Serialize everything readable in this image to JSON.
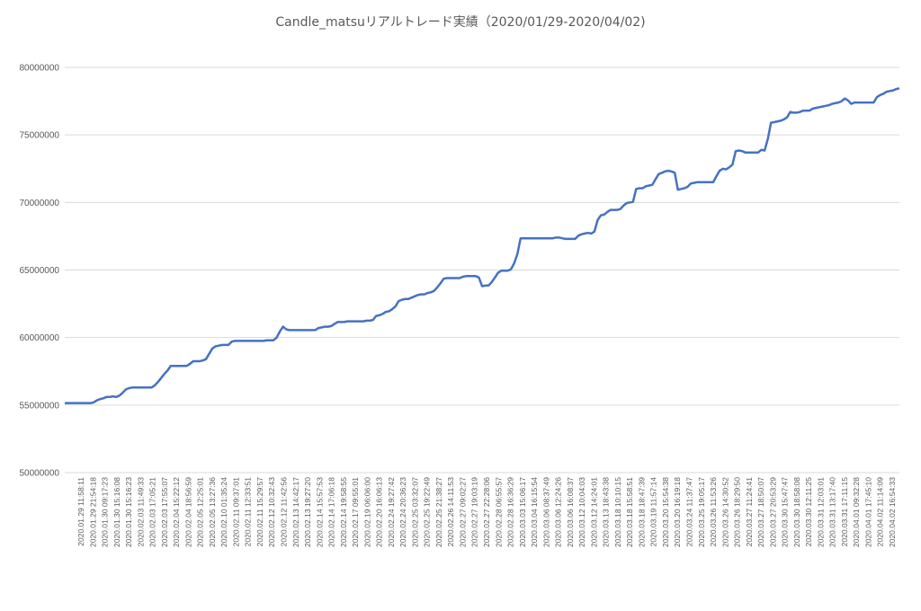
{
  "chart_data": {
    "type": "line",
    "title": "Candle_matsuリアルトレード実績（2020/01/29-2020/04/02)",
    "xlabel": "",
    "ylabel": "",
    "ylim": [
      50000000,
      80000000
    ],
    "y_ticks": [
      "80000000",
      "75000000",
      "70000000",
      "65000000",
      "60000000",
      "55000000",
      "50000000"
    ],
    "y_tick_values": [
      80000000,
      75000000,
      70000000,
      65000000,
      60000000,
      55000000,
      50000000
    ],
    "grid": "horizontal",
    "line_color": "#4472c4",
    "x_tick_labels": [
      "2020.01.29 11:58:11",
      "2020.01.29 21:54:18",
      "2020.01.30 09:17:23",
      "2020.01.30 15:16:08",
      "2020.01.30 15:16:23",
      "2020.02.03 11:49:33",
      "2020.02.03 17:05:21",
      "2020.02.03 17:55:07",
      "2020.02.04 15:22:12",
      "2020.02.04 18:56:59",
      "2020.02.05 12:25:01",
      "2020.02.05 13:27:36",
      "2020.02.10 01:35:24",
      "2020.02.11 09:37:01",
      "2020.02.11 12:33:51",
      "2020.02.11 15:29:57",
      "2020.02.12 10:32:43",
      "2020.02.12 11:42:56",
      "2020.02.13 14:42:17",
      "2020.02.13 19:27:20",
      "2020.02.14 15:57:53",
      "2020.02.14 17:06:18",
      "2020.02.14 19:58:55",
      "2020.02.17 09:55:01",
      "2020.02.19 06:06:00",
      "2020.02.20 16:06:13",
      "2020.02.24 19:27:42",
      "2020.02.24 20:36:23",
      "2020.02.25 03:32:07",
      "2020.02.25 19:22:49",
      "2020.02.25 21:38:27",
      "2020.02.26 14:11:53",
      "2020.02.27 09:02:27",
      "2020.02.27 19:03:19",
      "2020.02.27 22:28:06",
      "2020.02.28 06:55:57",
      "2020.02.28 16:36:29",
      "2020.03.03 15:06:17",
      "2020.03.04 16:15:54",
      "2020.03.06 08:37:49",
      "2020.03.06 12:24:26",
      "2020.03.06 16:08:37",
      "2020.03.12 10:04:03",
      "2020.03.12 14:24:01",
      "2020.03.13 18:43:38",
      "2020.03.18 10:10:15",
      "2020.03.18 15:58:51",
      "2020.03.18 18:47:39",
      "2020.03.19 11:57:14",
      "2020.03.20 15:54:38",
      "2020.03.20 16:19:18",
      "2020.03.24 11:37:47",
      "2020.03.25 19:05:17",
      "2020.03.26 11:53:26",
      "2020.03.26 14:30:52",
      "2020.03.26 18:29:50",
      "2020.03.27 11:24:41",
      "2020.03.27 18:50:07",
      "2020.03.27 20:53:29",
      "2020.03.30 15:47:47",
      "2020.03.30 18:58:08",
      "2020.03.30 12:11:25",
      "2020.03.31 12:03:01",
      "2020.03.31 13:17:40",
      "2020.03.31 17:11:15",
      "2020.04.01 09:32:28",
      "2020.04.01 17:45:10",
      "2020.04.02 11:14:09",
      "2020.04.02 16:54:33"
    ],
    "series": [
      {
        "name": "",
        "values": [
          [
            0,
            55150000
          ],
          [
            3,
            55150000
          ],
          [
            6,
            55150000
          ],
          [
            9,
            55150000
          ],
          [
            12,
            55150000
          ],
          [
            15,
            55150000
          ],
          [
            18,
            55150000
          ],
          [
            21,
            55150000
          ],
          [
            24,
            55150000
          ],
          [
            27,
            55200000
          ],
          [
            30,
            55350000
          ],
          [
            33,
            55450000
          ],
          [
            36,
            55500000
          ],
          [
            39,
            55600000
          ],
          [
            42,
            55600000
          ],
          [
            45,
            55650000
          ],
          [
            48,
            55600000
          ],
          [
            51,
            55700000
          ],
          [
            54,
            55900000
          ],
          [
            57,
            56150000
          ],
          [
            60,
            56250000
          ],
          [
            63,
            56300000
          ],
          [
            66,
            56300000
          ],
          [
            69,
            56300000
          ],
          [
            72,
            56300000
          ],
          [
            75,
            56300000
          ],
          [
            78,
            56300000
          ],
          [
            81,
            56300000
          ],
          [
            84,
            56450000
          ],
          [
            87,
            56700000
          ],
          [
            90,
            57000000
          ],
          [
            93,
            57300000
          ],
          [
            96,
            57550000
          ],
          [
            99,
            57900000
          ],
          [
            102,
            57900000
          ],
          [
            105,
            57900000
          ],
          [
            108,
            57900000
          ],
          [
            111,
            57900000
          ],
          [
            114,
            57900000
          ],
          [
            117,
            58050000
          ],
          [
            120,
            58250000
          ],
          [
            123,
            58250000
          ],
          [
            126,
            58250000
          ],
          [
            129,
            58300000
          ],
          [
            132,
            58400000
          ],
          [
            135,
            58800000
          ],
          [
            138,
            59200000
          ],
          [
            141,
            59350000
          ],
          [
            144,
            59400000
          ],
          [
            147,
            59450000
          ],
          [
            150,
            59450000
          ],
          [
            153,
            59450000
          ],
          [
            156,
            59700000
          ],
          [
            159,
            59750000
          ],
          [
            162,
            59750000
          ],
          [
            165,
            59750000
          ],
          [
            168,
            59750000
          ],
          [
            171,
            59750000
          ],
          [
            174,
            59750000
          ],
          [
            177,
            59750000
          ],
          [
            180,
            59750000
          ],
          [
            183,
            59750000
          ],
          [
            186,
            59750000
          ],
          [
            189,
            59800000
          ],
          [
            192,
            59800000
          ],
          [
            195,
            59800000
          ],
          [
            198,
            60000000
          ],
          [
            201,
            60450000
          ],
          [
            204,
            60800000
          ],
          [
            207,
            60600000
          ],
          [
            210,
            60550000
          ],
          [
            213,
            60550000
          ],
          [
            216,
            60550000
          ],
          [
            219,
            60550000
          ],
          [
            222,
            60550000
          ],
          [
            225,
            60550000
          ],
          [
            228,
            60550000
          ],
          [
            231,
            60550000
          ],
          [
            234,
            60550000
          ],
          [
            237,
            60700000
          ],
          [
            240,
            60750000
          ],
          [
            243,
            60800000
          ],
          [
            246,
            60800000
          ],
          [
            249,
            60850000
          ],
          [
            252,
            61000000
          ],
          [
            255,
            61150000
          ],
          [
            258,
            61150000
          ],
          [
            261,
            61150000
          ],
          [
            264,
            61200000
          ],
          [
            267,
            61200000
          ],
          [
            270,
            61200000
          ],
          [
            273,
            61200000
          ],
          [
            276,
            61200000
          ],
          [
            279,
            61200000
          ],
          [
            282,
            61250000
          ],
          [
            285,
            61250000
          ],
          [
            288,
            61300000
          ],
          [
            291,
            61600000
          ],
          [
            294,
            61650000
          ],
          [
            297,
            61750000
          ],
          [
            300,
            61900000
          ],
          [
            303,
            61950000
          ],
          [
            306,
            62100000
          ],
          [
            309,
            62300000
          ],
          [
            312,
            62700000
          ],
          [
            315,
            62800000
          ],
          [
            318,
            62850000
          ],
          [
            321,
            62850000
          ],
          [
            324,
            62950000
          ],
          [
            327,
            63050000
          ],
          [
            330,
            63150000
          ],
          [
            333,
            63200000
          ],
          [
            336,
            63200000
          ],
          [
            339,
            63300000
          ],
          [
            342,
            63350000
          ],
          [
            345,
            63450000
          ],
          [
            348,
            63700000
          ],
          [
            351,
            64000000
          ],
          [
            354,
            64350000
          ],
          [
            357,
            64400000
          ],
          [
            360,
            64400000
          ],
          [
            363,
            64400000
          ],
          [
            366,
            64400000
          ],
          [
            369,
            64400000
          ],
          [
            372,
            64500000
          ],
          [
            375,
            64550000
          ],
          [
            378,
            64550000
          ],
          [
            381,
            64550000
          ],
          [
            384,
            64550000
          ],
          [
            387,
            64450000
          ],
          [
            390,
            63800000
          ],
          [
            393,
            63850000
          ],
          [
            396,
            63850000
          ],
          [
            399,
            64100000
          ],
          [
            402,
            64450000
          ],
          [
            405,
            64800000
          ],
          [
            408,
            64950000
          ],
          [
            411,
            64950000
          ],
          [
            414,
            64950000
          ],
          [
            417,
            65050000
          ],
          [
            420,
            65500000
          ],
          [
            423,
            66200000
          ],
          [
            426,
            67350000
          ],
          [
            429,
            67350000
          ],
          [
            432,
            67350000
          ],
          [
            435,
            67350000
          ],
          [
            438,
            67350000
          ],
          [
            441,
            67350000
          ],
          [
            444,
            67350000
          ],
          [
            447,
            67350000
          ],
          [
            450,
            67350000
          ],
          [
            453,
            67350000
          ],
          [
            456,
            67350000
          ],
          [
            459,
            67400000
          ],
          [
            462,
            67400000
          ],
          [
            465,
            67350000
          ],
          [
            468,
            67300000
          ],
          [
            471,
            67300000
          ],
          [
            474,
            67300000
          ],
          [
            477,
            67300000
          ],
          [
            480,
            67550000
          ],
          [
            483,
            67650000
          ],
          [
            486,
            67700000
          ],
          [
            489,
            67750000
          ],
          [
            492,
            67700000
          ],
          [
            495,
            67850000
          ],
          [
            498,
            68700000
          ],
          [
            501,
            69050000
          ],
          [
            504,
            69100000
          ],
          [
            507,
            69300000
          ],
          [
            510,
            69450000
          ],
          [
            513,
            69450000
          ],
          [
            516,
            69450000
          ],
          [
            519,
            69500000
          ],
          [
            522,
            69750000
          ],
          [
            525,
            69950000
          ],
          [
            528,
            70000000
          ],
          [
            531,
            70050000
          ],
          [
            534,
            71000000
          ],
          [
            537,
            71050000
          ],
          [
            540,
            71050000
          ],
          [
            543,
            71200000
          ],
          [
            546,
            71250000
          ],
          [
            549,
            71300000
          ],
          [
            552,
            71700000
          ],
          [
            555,
            72100000
          ],
          [
            558,
            72200000
          ],
          [
            561,
            72300000
          ],
          [
            564,
            72350000
          ],
          [
            567,
            72300000
          ],
          [
            570,
            72200000
          ],
          [
            573,
            70950000
          ],
          [
            576,
            71000000
          ],
          [
            579,
            71050000
          ],
          [
            582,
            71150000
          ],
          [
            585,
            71400000
          ],
          [
            588,
            71450000
          ],
          [
            591,
            71500000
          ],
          [
            594,
            71500000
          ],
          [
            597,
            71500000
          ],
          [
            600,
            71500000
          ],
          [
            603,
            71500000
          ],
          [
            606,
            71500000
          ],
          [
            609,
            71950000
          ],
          [
            612,
            72350000
          ],
          [
            615,
            72500000
          ],
          [
            618,
            72450000
          ],
          [
            621,
            72600000
          ],
          [
            624,
            72800000
          ],
          [
            627,
            73800000
          ],
          [
            630,
            73850000
          ],
          [
            633,
            73800000
          ],
          [
            636,
            73700000
          ],
          [
            639,
            73700000
          ],
          [
            642,
            73700000
          ],
          [
            645,
            73700000
          ],
          [
            648,
            73700000
          ],
          [
            651,
            73900000
          ],
          [
            654,
            73850000
          ],
          [
            657,
            74700000
          ],
          [
            660,
            75900000
          ],
          [
            663,
            75950000
          ],
          [
            666,
            76000000
          ],
          [
            669,
            76050000
          ],
          [
            672,
            76150000
          ],
          [
            675,
            76300000
          ],
          [
            678,
            76700000
          ],
          [
            681,
            76650000
          ],
          [
            684,
            76650000
          ],
          [
            687,
            76700000
          ],
          [
            690,
            76800000
          ],
          [
            693,
            76800000
          ],
          [
            696,
            76800000
          ],
          [
            699,
            76950000
          ],
          [
            702,
            77000000
          ],
          [
            705,
            77050000
          ],
          [
            708,
            77100000
          ],
          [
            711,
            77150000
          ],
          [
            714,
            77200000
          ],
          [
            717,
            77300000
          ],
          [
            720,
            77350000
          ],
          [
            723,
            77400000
          ],
          [
            726,
            77500000
          ],
          [
            729,
            77700000
          ],
          [
            732,
            77550000
          ],
          [
            735,
            77300000
          ],
          [
            738,
            77400000
          ],
          [
            741,
            77400000
          ],
          [
            744,
            77400000
          ],
          [
            747,
            77400000
          ],
          [
            750,
            77400000
          ],
          [
            753,
            77400000
          ],
          [
            756,
            77400000
          ],
          [
            759,
            77800000
          ],
          [
            762,
            77950000
          ],
          [
            765,
            78050000
          ],
          [
            768,
            78200000
          ],
          [
            771,
            78250000
          ],
          [
            774,
            78300000
          ],
          [
            777,
            78400000
          ],
          [
            780,
            78450000
          ]
        ]
      }
    ]
  }
}
